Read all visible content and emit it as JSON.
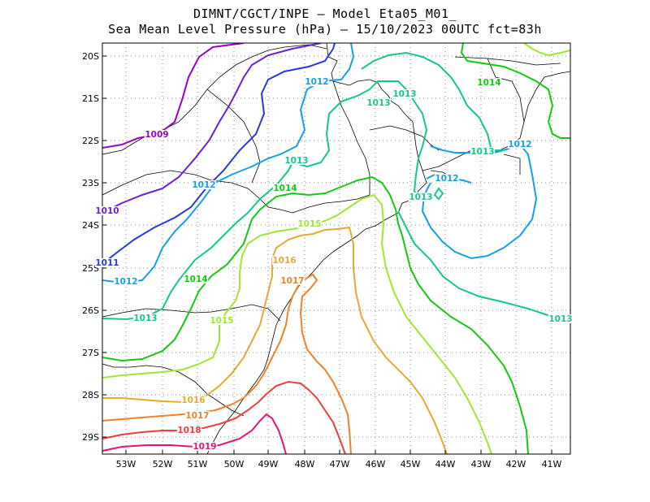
{
  "title": {
    "line1": "DIMNT/CGCT/INPE –  Model Eta05_M01_",
    "line2": "Sea Mean Level Pressure (hPa) – 15/10/2023 00UTC fct=83h"
  },
  "map": {
    "x_ticks": [
      "53W",
      "52W",
      "51W",
      "50W",
      "49W",
      "48W",
      "47W",
      "46W",
      "45W",
      "44W",
      "43W",
      "42W",
      "41W"
    ],
    "y_ticks": [
      "20S",
      "21S",
      "22S",
      "23S",
      "24S",
      "25S",
      "26S",
      "27S",
      "28S",
      "29S"
    ]
  },
  "colors": {
    "1009": "#9a00c8",
    "1010": "#6a20d8",
    "1011": "#2838e0",
    "1012": "#14a0e6",
    "1013": "#14c88c",
    "1014": "#14c814",
    "1015": "#a0e632",
    "1016": "#e6aa32",
    "1017": "#f08228",
    "1018": "#f03c3c",
    "1019": "#e61478",
    "coast": "#000000",
    "grid": "#888888"
  },
  "contour_labels": [
    {
      "text": "1009",
      "level": "1009"
    },
    {
      "text": "1010",
      "level": "1010"
    },
    {
      "text": "1011",
      "level": "1011"
    },
    {
      "text": "1012",
      "level": "1012"
    },
    {
      "text": "1012",
      "level": "1012"
    },
    {
      "text": "1012",
      "level": "1012"
    },
    {
      "text": "1012",
      "level": "1012"
    },
    {
      "text": "1012",
      "level": "1012"
    },
    {
      "text": "1013",
      "level": "1013"
    },
    {
      "text": "1013",
      "level": "1013"
    },
    {
      "text": "1013",
      "level": "1013"
    },
    {
      "text": "1013",
      "level": "1013"
    },
    {
      "text": "1013",
      "level": "1013"
    },
    {
      "text": "1013",
      "level": "1013"
    },
    {
      "text": "1013",
      "level": "1013"
    },
    {
      "text": "1014",
      "level": "1014"
    },
    {
      "text": "1014",
      "level": "1014"
    },
    {
      "text": "1014",
      "level": "1014"
    },
    {
      "text": "1015",
      "level": "1015"
    },
    {
      "text": "1015",
      "level": "1015"
    },
    {
      "text": "1016",
      "level": "1016"
    },
    {
      "text": "1016",
      "level": "1016"
    },
    {
      "text": "1017",
      "level": "1017"
    },
    {
      "text": "1017",
      "level": "1017"
    },
    {
      "text": "1018",
      "level": "1018"
    },
    {
      "text": "1019",
      "level": "1019"
    }
  ]
}
